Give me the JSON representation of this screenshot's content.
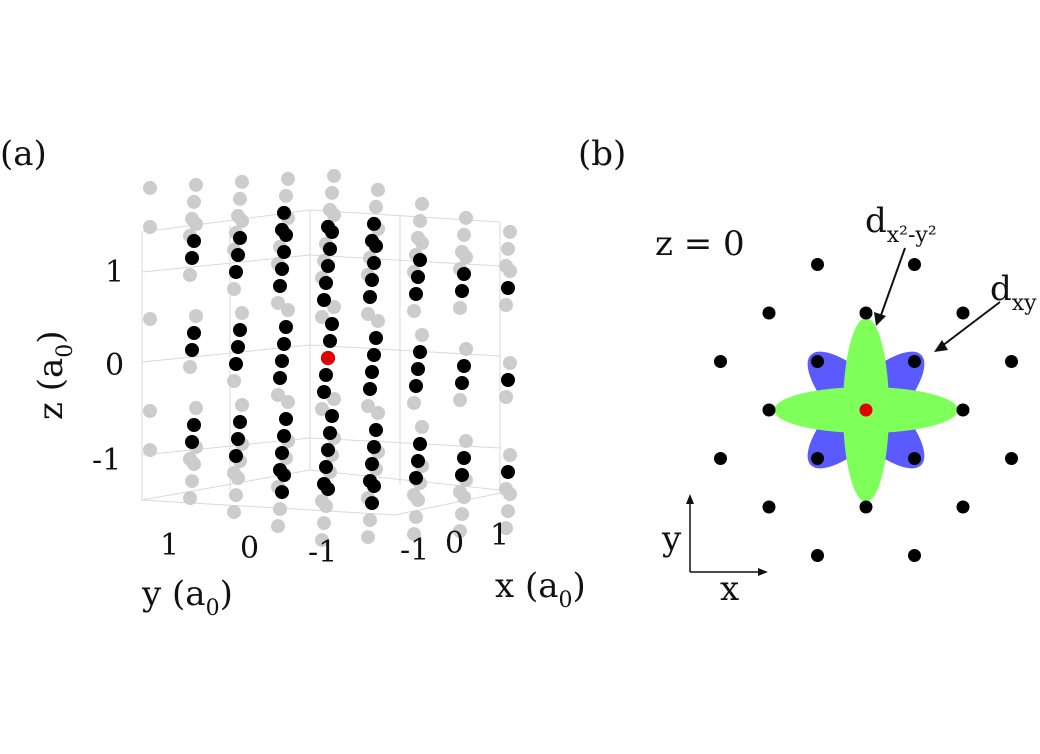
{
  "panel_a": {
    "label": "(a)",
    "z_axis": {
      "label": "z (a",
      "label_sub": "0",
      "label_close": ")",
      "ticks": [
        "1",
        "0",
        "-1"
      ]
    },
    "y_axis": {
      "label": "y (a",
      "label_sub": "0",
      "label_close": ")",
      "ticks": [
        "1",
        "0",
        "-1"
      ]
    },
    "x_axis": {
      "label": "x (a",
      "label_sub": "0",
      "label_close": ")",
      "ticks": [
        "-1",
        "0",
        "1"
      ]
    },
    "colors": {
      "front": "#000000",
      "back": "#cccccc",
      "center": "#e00000"
    }
  },
  "panel_b": {
    "label": "(b)",
    "plane_label": "z = 0",
    "orbital_1": {
      "base": "d",
      "sub": "x²-y²",
      "color": "#7fff5a"
    },
    "orbital_2": {
      "base": "d",
      "sub": "xy",
      "color": "#5a5aff"
    },
    "axis_y": "y",
    "axis_x": "x",
    "colors": {
      "site": "#000000",
      "center": "#e00000"
    }
  }
}
